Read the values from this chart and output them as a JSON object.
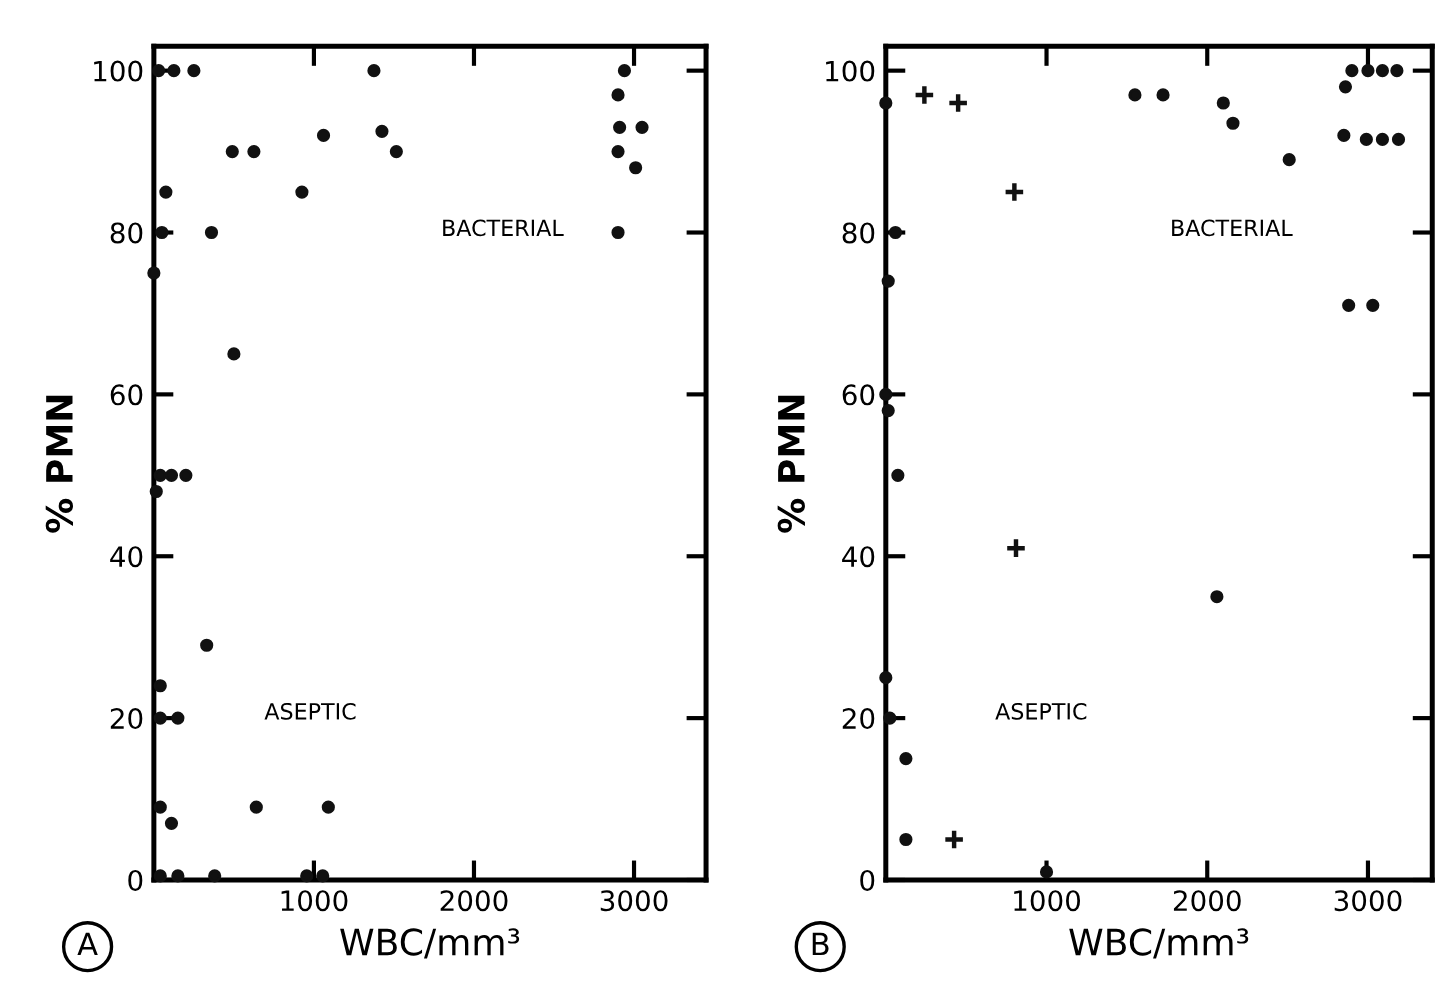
{
  "chart_data": [
    {
      "type": "scatter",
      "xlabel": "WBC/mm³",
      "ylabel": "% PMN",
      "xlim": [
        0,
        3450
      ],
      "ylim": [
        0,
        103
      ],
      "xticks": [
        1000,
        2000,
        3000
      ],
      "yticks": [
        0,
        20,
        40,
        60,
        80,
        100
      ],
      "grid": false,
      "legend": false,
      "marker": "circle",
      "annotations": [
        "BACTERIAL",
        "ASEPTIC",
        "A"
      ],
      "series": [
        {
          "color": "#111111",
          "x": [
            30,
            125,
            250,
            1375,
            2940,
            2900,
            2910,
            3050,
            490,
            625,
            1060,
            1425,
            1515,
            2900,
            3010,
            75,
            925,
            50,
            360,
            2900,
            0,
            500,
            40,
            110,
            200,
            15,
            330,
            40,
            40,
            150,
            40,
            110,
            640,
            1090,
            40,
            150,
            380,
            955,
            1055
          ],
          "values": [
            100,
            100,
            100,
            100,
            100,
            97,
            93,
            93,
            90,
            90,
            92,
            92.5,
            90,
            90,
            88,
            85,
            85,
            80,
            80,
            80,
            75,
            65,
            50,
            50,
            50,
            48,
            29,
            24,
            20,
            20,
            9,
            7,
            9,
            9,
            0.5,
            0.5,
            0.5,
            0.5,
            0.5
          ]
        }
      ]
    },
    {
      "type": "scatter",
      "xlabel": "WBC/mm³",
      "ylabel": "% PMN",
      "xlim": [
        0,
        3400
      ],
      "ylim": [
        0,
        103
      ],
      "xticks": [
        1000,
        2000,
        3000
      ],
      "yticks": [
        0,
        20,
        40,
        60,
        80,
        100
      ],
      "grid": false,
      "legend": false,
      "marker": "circle",
      "annotations": [
        "BACTERIAL",
        "ASEPTIC",
        "B"
      ],
      "series": [
        {
          "color": "#111111",
          "x": [
            0,
            1550,
            1725,
            2100,
            2160,
            2510,
            2850,
            2990,
            3090,
            3190,
            2860,
            2900,
            3000,
            3090,
            3180,
            2880,
            3030,
            60,
            15,
            0,
            15,
            75,
            2060,
            0,
            25,
            125,
            125,
            1000
          ],
          "values": [
            96,
            97,
            97,
            96,
            93.5,
            89,
            92,
            91.5,
            91.5,
            91.5,
            98,
            100,
            100,
            100,
            100,
            71,
            71,
            80,
            74,
            60,
            58,
            50,
            35,
            25,
            20,
            15,
            5,
            1
          ]
        },
        {
          "color": "#111111",
          "marker": "cross",
          "x": [
            240,
            450,
            800,
            810,
            425
          ],
          "values": [
            97,
            96,
            85,
            41,
            5
          ]
        }
      ]
    }
  ]
}
